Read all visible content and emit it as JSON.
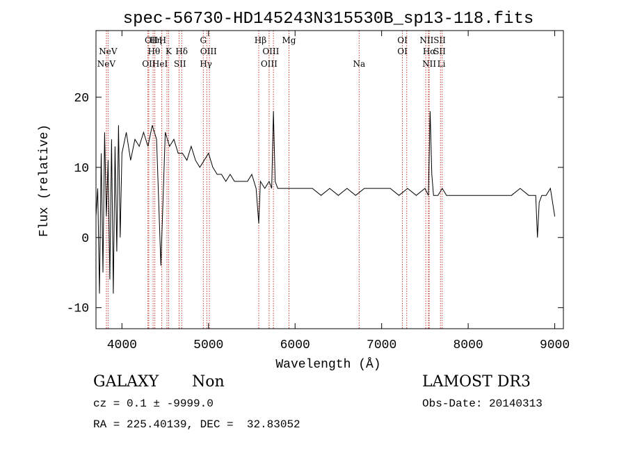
{
  "title": "spec-56730-HD145243N315530B_sp13-118.fits",
  "footer": {
    "class_label": "GALAXY",
    "subclass_label": "Non",
    "cz_line": "cz = 0.1 ± -9999.0",
    "radec_line": "RA = 225.40139, DEC =  32.83052",
    "survey": "LAMOST DR3",
    "obs_date": "Obs-Date: 20140313"
  },
  "chart_data": {
    "type": "line",
    "title": "spec-56730-HD145243N315530B_sp13-118.fits",
    "xlabel": "Wavelength (Å)",
    "ylabel": "Flux (relative)",
    "xlim": [
      3700,
      9100
    ],
    "ylim": [
      -13,
      29.5
    ],
    "x_ticks": [
      4000,
      5000,
      6000,
      7000,
      8000,
      9000
    ],
    "y_ticks": [
      -10,
      0,
      10,
      20
    ],
    "line_color": "#000000",
    "marker_color": "#c0392b",
    "series": [
      {
        "x": [
          3700,
          3720,
          3740,
          3760,
          3780,
          3800,
          3820,
          3840,
          3860,
          3880,
          3900,
          3920,
          3940,
          3960,
          3980,
          4000,
          4050,
          4100,
          4150,
          4200,
          4250,
          4300,
          4350,
          4400,
          4450,
          4500,
          4550,
          4600,
          4650,
          4700,
          4750,
          4800,
          4850,
          4900,
          4950,
          5000,
          5050,
          5100,
          5150,
          5200,
          5250,
          5300,
          5350,
          5400,
          5450,
          5500,
          5550,
          5580,
          5600,
          5650,
          5700,
          5730,
          5750,
          5770,
          5800,
          5850,
          5900,
          5950,
          6000,
          6100,
          6200,
          6300,
          6400,
          6500,
          6600,
          6700,
          6800,
          6900,
          7000,
          7100,
          7200,
          7300,
          7400,
          7500,
          7540,
          7560,
          7580,
          7600,
          7650,
          7700,
          7750,
          7800,
          7900,
          8000,
          8100,
          8200,
          8300,
          8400,
          8500,
          8600,
          8700,
          8780,
          8800,
          8820,
          8850,
          8900,
          8950,
          9000
        ],
        "y": [
          3,
          7,
          -8,
          12,
          -5,
          15,
          3,
          11,
          -6,
          14,
          -8,
          13,
          -2,
          16,
          0,
          12,
          15,
          11,
          14,
          13,
          15,
          13,
          16,
          14,
          -4,
          15,
          13,
          14,
          12,
          12,
          11,
          13,
          11,
          10,
          11,
          12,
          10,
          9,
          9,
          8,
          9,
          8,
          8,
          8,
          8,
          9,
          7,
          2,
          8,
          7,
          8,
          7,
          18,
          8,
          7,
          7,
          7,
          7,
          7,
          7,
          7,
          6,
          7,
          6,
          7,
          6,
          7,
          7,
          7,
          7,
          6,
          7,
          6,
          7,
          6,
          18,
          9,
          6,
          6,
          7,
          6,
          6,
          6,
          6,
          6,
          6,
          6,
          6,
          6,
          7,
          6,
          6,
          0,
          5,
          6,
          6,
          7,
          3
        ]
      }
    ],
    "markers_top": [
      {
        "x": 4340,
        "label": "OII"
      },
      {
        "x": 4390,
        "label": "Hη"
      },
      {
        "x": 4470,
        "label": "H"
      },
      {
        "x": 4940,
        "label": "G"
      },
      {
        "x": 5600,
        "label": "Hβ"
      },
      {
        "x": 5930,
        "label": "Mg"
      },
      {
        "x": 7240,
        "label": "OI"
      },
      {
        "x": 7520,
        "label": "NII"
      },
      {
        "x": 7670,
        "label": "SII"
      }
    ],
    "markers_mid": [
      {
        "x": 3840,
        "label": "NeV"
      },
      {
        "x": 4370,
        "label": "Hθ"
      },
      {
        "x": 4540,
        "label": "K"
      },
      {
        "x": 4690,
        "label": "Hδ"
      },
      {
        "x": 5000,
        "label": "OIII"
      },
      {
        "x": 5720,
        "label": "OIII"
      },
      {
        "x": 7240,
        "label": "OI"
      },
      {
        "x": 7550,
        "label": "Hα"
      },
      {
        "x": 7670,
        "label": "SII"
      }
    ],
    "markers_bot": [
      {
        "x": 3820,
        "label": "NeV"
      },
      {
        "x": 4310,
        "label": "OII"
      },
      {
        "x": 4440,
        "label": "HeI"
      },
      {
        "x": 4670,
        "label": "SII"
      },
      {
        "x": 4970,
        "label": "Hγ"
      },
      {
        "x": 5700,
        "label": "OIII"
      },
      {
        "x": 6740,
        "label": "Na"
      },
      {
        "x": 7550,
        "label": "NII"
      },
      {
        "x": 7690,
        "label": "Li"
      }
    ],
    "marker_lines_x": [
      3820,
      3840,
      4300,
      4310,
      4360,
      4380,
      4460,
      4520,
      4540,
      4660,
      4690,
      4940,
      4980,
      5010,
      5580,
      5700,
      5750,
      5930,
      6740,
      7240,
      7290,
      7510,
      7540,
      7550,
      7680,
      7700
    ]
  }
}
